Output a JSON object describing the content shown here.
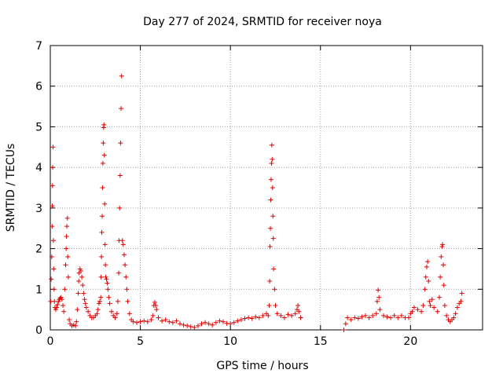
{
  "chart_data": {
    "type": "scatter",
    "title": "Day 277 of 2024, SRMTID for receiver noya",
    "xlabel": "GPS time / hours",
    "ylabel": "SRMTID / TECUs",
    "xlim": [
      0,
      24
    ],
    "ylim": [
      0,
      7
    ],
    "xticks": [
      0,
      5,
      10,
      15,
      20
    ],
    "yticks": [
      0,
      1,
      2,
      3,
      4,
      5,
      6,
      7
    ],
    "grid": true,
    "marker": "+",
    "color": "#e00000",
    "series": [
      {
        "name": "SRMTID",
        "points": [
          [
            0.02,
            0.7
          ],
          [
            0.05,
            1.25
          ],
          [
            0.08,
            1.8
          ],
          [
            0.1,
            2.55
          ],
          [
            0.11,
            3.05
          ],
          [
            0.12,
            3.55
          ],
          [
            0.13,
            4.0
          ],
          [
            0.15,
            4.5
          ],
          [
            0.17,
            2.2
          ],
          [
            0.19,
            1.5
          ],
          [
            0.21,
            1.0
          ],
          [
            0.23,
            0.7
          ],
          [
            0.26,
            0.55
          ],
          [
            0.3,
            0.5
          ],
          [
            0.35,
            0.55
          ],
          [
            0.4,
            0.62
          ],
          [
            0.45,
            0.7
          ],
          [
            0.5,
            0.75
          ],
          [
            0.55,
            0.78
          ],
          [
            0.6,
            0.8
          ],
          [
            0.65,
            0.75
          ],
          [
            0.7,
            0.6
          ],
          [
            0.75,
            0.45
          ],
          [
            0.8,
            1.0
          ],
          [
            0.85,
            1.6
          ],
          [
            0.88,
            2.0
          ],
          [
            0.9,
            2.3
          ],
          [
            0.92,
            2.55
          ],
          [
            0.95,
            2.75
          ],
          [
            0.97,
            1.8
          ],
          [
            1.0,
            1.3
          ],
          [
            1.05,
            0.25
          ],
          [
            1.1,
            0.15
          ],
          [
            1.2,
            0.1
          ],
          [
            1.3,
            0.12
          ],
          [
            1.4,
            0.1
          ],
          [
            1.45,
            0.2
          ],
          [
            1.5,
            0.5
          ],
          [
            1.55,
            0.9
          ],
          [
            1.58,
            1.2
          ],
          [
            1.6,
            1.4
          ],
          [
            1.65,
            1.5
          ],
          [
            1.7,
            1.45
          ],
          [
            1.75,
            1.3
          ],
          [
            1.8,
            1.1
          ],
          [
            1.85,
            0.9
          ],
          [
            1.9,
            0.75
          ],
          [
            1.95,
            0.65
          ],
          [
            2.0,
            0.55
          ],
          [
            2.1,
            0.45
          ],
          [
            2.2,
            0.35
          ],
          [
            2.3,
            0.3
          ],
          [
            2.4,
            0.3
          ],
          [
            2.5,
            0.35
          ],
          [
            2.6,
            0.4
          ],
          [
            2.65,
            0.5
          ],
          [
            2.7,
            0.65
          ],
          [
            2.75,
            0.7
          ],
          [
            2.8,
            0.8
          ],
          [
            2.82,
            1.3
          ],
          [
            2.84,
            1.8
          ],
          [
            2.86,
            2.4
          ],
          [
            2.88,
            2.8
          ],
          [
            2.9,
            3.5
          ],
          [
            2.92,
            4.1
          ],
          [
            2.94,
            4.6
          ],
          [
            2.96,
            4.98
          ],
          [
            2.98,
            5.05
          ],
          [
            3.0,
            4.3
          ],
          [
            3.02,
            3.1
          ],
          [
            3.04,
            2.1
          ],
          [
            3.06,
            1.6
          ],
          [
            3.08,
            1.3
          ],
          [
            3.12,
            1.25
          ],
          [
            3.16,
            1.15
          ],
          [
            3.2,
            1.0
          ],
          [
            3.25,
            0.8
          ],
          [
            3.3,
            0.65
          ],
          [
            3.4,
            0.45
          ],
          [
            3.5,
            0.35
          ],
          [
            3.6,
            0.3
          ],
          [
            3.7,
            0.4
          ],
          [
            3.75,
            0.7
          ],
          [
            3.8,
            1.4
          ],
          [
            3.82,
            2.2
          ],
          [
            3.85,
            3.0
          ],
          [
            3.88,
            3.8
          ],
          [
            3.9,
            4.6
          ],
          [
            3.93,
            5.45
          ],
          [
            3.96,
            6.25
          ],
          [
            4.0,
            2.2
          ],
          [
            4.05,
            2.1
          ],
          [
            4.1,
            1.85
          ],
          [
            4.15,
            1.6
          ],
          [
            4.2,
            1.3
          ],
          [
            4.25,
            1.0
          ],
          [
            4.3,
            0.7
          ],
          [
            4.4,
            0.4
          ],
          [
            4.5,
            0.25
          ],
          [
            4.6,
            0.2
          ],
          [
            4.8,
            0.18
          ],
          [
            5.0,
            0.2
          ],
          [
            5.2,
            0.22
          ],
          [
            5.4,
            0.2
          ],
          [
            5.6,
            0.25
          ],
          [
            5.7,
            0.35
          ],
          [
            5.75,
            0.6
          ],
          [
            5.8,
            0.68
          ],
          [
            5.85,
            0.6
          ],
          [
            5.9,
            0.5
          ],
          [
            6.0,
            0.3
          ],
          [
            6.2,
            0.22
          ],
          [
            6.4,
            0.25
          ],
          [
            6.6,
            0.2
          ],
          [
            6.8,
            0.18
          ],
          [
            7.0,
            0.22
          ],
          [
            7.2,
            0.15
          ],
          [
            7.4,
            0.12
          ],
          [
            7.6,
            0.1
          ],
          [
            7.8,
            0.08
          ],
          [
            8.0,
            0.06
          ],
          [
            8.2,
            0.1
          ],
          [
            8.4,
            0.15
          ],
          [
            8.6,
            0.18
          ],
          [
            8.8,
            0.15
          ],
          [
            9.0,
            0.12
          ],
          [
            9.2,
            0.18
          ],
          [
            9.4,
            0.22
          ],
          [
            9.6,
            0.2
          ],
          [
            9.8,
            0.16
          ],
          [
            10.0,
            0.15
          ],
          [
            10.2,
            0.18
          ],
          [
            10.4,
            0.22
          ],
          [
            10.6,
            0.25
          ],
          [
            10.8,
            0.28
          ],
          [
            11.0,
            0.3
          ],
          [
            11.2,
            0.28
          ],
          [
            11.4,
            0.32
          ],
          [
            11.6,
            0.3
          ],
          [
            11.8,
            0.35
          ],
          [
            12.0,
            0.4
          ],
          [
            12.1,
            0.35
          ],
          [
            12.15,
            0.6
          ],
          [
            12.18,
            1.2
          ],
          [
            12.2,
            2.05
          ],
          [
            12.22,
            2.5
          ],
          [
            12.24,
            3.2
          ],
          [
            12.26,
            3.7
          ],
          [
            12.28,
            4.1
          ],
          [
            12.3,
            4.55
          ],
          [
            12.32,
            4.2
          ],
          [
            12.34,
            3.5
          ],
          [
            12.36,
            2.8
          ],
          [
            12.38,
            2.25
          ],
          [
            12.4,
            1.5
          ],
          [
            12.45,
            1.0
          ],
          [
            12.5,
            0.6
          ],
          [
            12.6,
            0.4
          ],
          [
            12.8,
            0.35
          ],
          [
            13.0,
            0.3
          ],
          [
            13.2,
            0.38
          ],
          [
            13.4,
            0.35
          ],
          [
            13.6,
            0.4
          ],
          [
            13.7,
            0.5
          ],
          [
            13.75,
            0.6
          ],
          [
            13.8,
            0.45
          ],
          [
            13.9,
            0.3
          ],
          [
            16.3,
            0.0
          ],
          [
            16.4,
            0.15
          ],
          [
            16.5,
            0.3
          ],
          [
            16.7,
            0.25
          ],
          [
            16.9,
            0.3
          ],
          [
            17.1,
            0.28
          ],
          [
            17.3,
            0.32
          ],
          [
            17.5,
            0.35
          ],
          [
            17.7,
            0.3
          ],
          [
            17.9,
            0.35
          ],
          [
            18.1,
            0.4
          ],
          [
            18.15,
            0.7
          ],
          [
            18.2,
            0.98
          ],
          [
            18.25,
            0.8
          ],
          [
            18.3,
            0.5
          ],
          [
            18.5,
            0.35
          ],
          [
            18.7,
            0.32
          ],
          [
            18.9,
            0.3
          ],
          [
            19.1,
            0.35
          ],
          [
            19.3,
            0.3
          ],
          [
            19.5,
            0.35
          ],
          [
            19.7,
            0.3
          ],
          [
            19.9,
            0.3
          ],
          [
            20.0,
            0.4
          ],
          [
            20.1,
            0.45
          ],
          [
            20.2,
            0.55
          ],
          [
            20.4,
            0.5
          ],
          [
            20.6,
            0.45
          ],
          [
            20.7,
            0.6
          ],
          [
            20.8,
            1.0
          ],
          [
            20.85,
            1.3
          ],
          [
            20.9,
            1.55
          ],
          [
            20.95,
            1.68
          ],
          [
            21.0,
            1.2
          ],
          [
            21.05,
            0.7
          ],
          [
            21.1,
            0.6
          ],
          [
            21.2,
            0.75
          ],
          [
            21.3,
            0.55
          ],
          [
            21.5,
            0.45
          ],
          [
            21.6,
            0.8
          ],
          [
            21.65,
            1.3
          ],
          [
            21.7,
            1.8
          ],
          [
            21.75,
            2.05
          ],
          [
            21.78,
            2.1
          ],
          [
            21.82,
            1.6
          ],
          [
            21.85,
            1.1
          ],
          [
            21.9,
            0.6
          ],
          [
            22.0,
            0.35
          ],
          [
            22.1,
            0.25
          ],
          [
            22.2,
            0.2
          ],
          [
            22.3,
            0.25
          ],
          [
            22.4,
            0.3
          ],
          [
            22.5,
            0.4
          ],
          [
            22.6,
            0.55
          ],
          [
            22.7,
            0.65
          ],
          [
            22.8,
            0.7
          ],
          [
            22.85,
            0.9
          ]
        ]
      }
    ]
  }
}
